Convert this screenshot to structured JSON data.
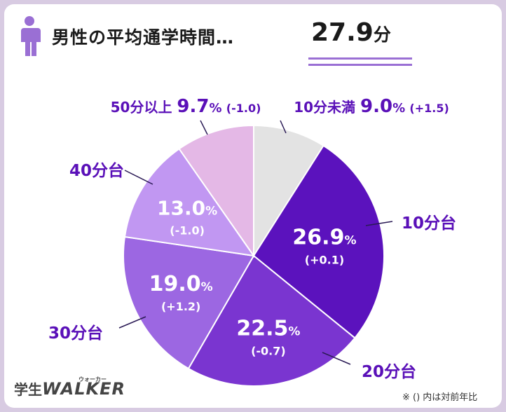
{
  "title": {
    "text": "男性の平均通学時間…",
    "value": "27.9",
    "unit": "分"
  },
  "footnote": "※ () 内は対前年比",
  "logo": {
    "prefix": "学生",
    "main": "WALKER",
    "ruby": "ウォーカー"
  },
  "chart_data": {
    "type": "pie",
    "start_angle_deg": 0,
    "direction": "clockwise",
    "slices": [
      {
        "label": "10分未満",
        "value": 9.0,
        "value_text": "9.0",
        "change": "(+1.5)",
        "color": "#e3e3e3"
      },
      {
        "label": "10分台",
        "value": 26.9,
        "value_text": "26.9",
        "change": "(+0.1)",
        "color": "#5b12bd"
      },
      {
        "label": "20分台",
        "value": 22.5,
        "value_text": "22.5",
        "change": "(-0.7)",
        "color": "#7a35d0"
      },
      {
        "label": "30分台",
        "value": 19.0,
        "value_text": "19.0",
        "change": "(+1.2)",
        "color": "#9c67e2"
      },
      {
        "label": "40分台",
        "value": 13.0,
        "value_text": "13.0",
        "change": "(-1.0)",
        "color": "#c197f2"
      },
      {
        "label": "50分以上",
        "value": 9.7,
        "value_text": "9.7",
        "change": "(-1.0)",
        "color": "#e4b8e6"
      }
    ],
    "label_color": "#5a10b8",
    "percent_sign": "%"
  }
}
